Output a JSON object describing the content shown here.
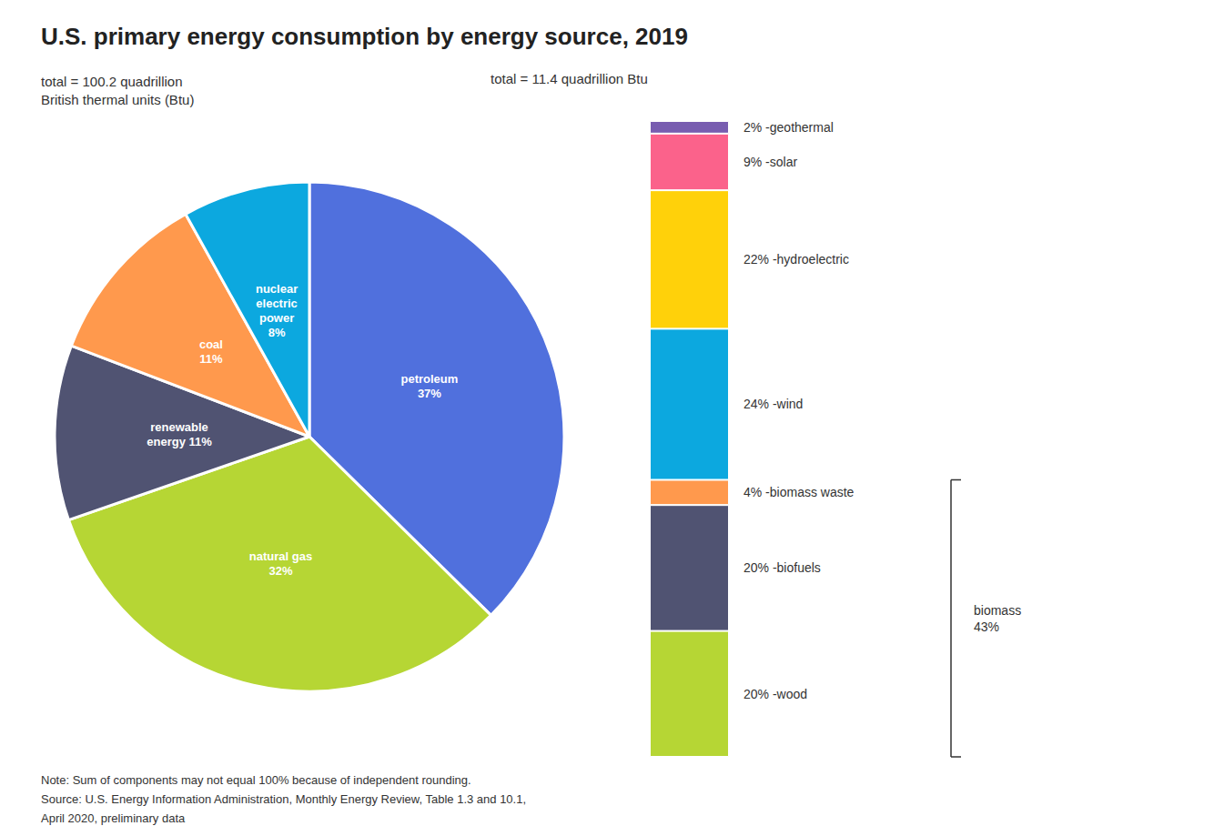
{
  "chart_data": [
    {
      "type": "pie",
      "title": "U.S. primary energy consumption by energy source, 2019",
      "subtitle": "total = 100.2 quadrillion\nBritish thermal units (Btu)",
      "categories": [
        "petroleum\n37%",
        "natural gas\n32%",
        "renewable\nenergy 11%",
        "coal\n11%",
        "nuclear\nelectric\npower\n8%"
      ],
      "values": [
        37,
        32,
        11,
        11,
        8
      ],
      "annotations": [
        "Note: Sum of components may not equal 100% because of independent rounding.",
        "Source: U.S. Energy Information Administration, Monthly Energy Review, Table 1.3 and 10.1,",
        "April 2020, preliminary data"
      ]
    },
    {
      "type": "bar",
      "subtitle": "total = 11.4 quadrillion Btu",
      "stacked": true,
      "categories": [
        null
      ],
      "series": [
        {
          "name": "2% -geothermal",
          "values": [
            2
          ]
        },
        {
          "name": "9% -solar",
          "values": [
            9
          ]
        },
        {
          "name": "22% -hydroelectric",
          "values": [
            22
          ]
        },
        {
          "name": "24% -wind",
          "values": [
            24
          ]
        },
        {
          "name": "4% -biomass waste",
          "values": [
            4
          ]
        },
        {
          "name": "20% -biofuels",
          "values": [
            20
          ]
        },
        {
          "name": "20% -wood",
          "values": [
            20
          ]
        }
      ],
      "ylim": [
        0,
        101
      ],
      "yticks": [
        0,
        101
      ],
      "tick_labels": false,
      "grid": false,
      "annotations": [
        {
          "text": "biomass\n43%",
          "series": [
            "4% -biomass waste",
            "20% -biofuels",
            "20% -wood"
          ]
        }
      ]
    }
  ]
}
